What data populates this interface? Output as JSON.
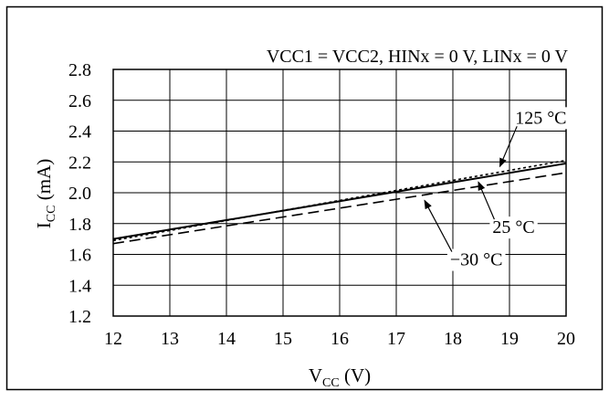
{
  "chart_data": {
    "type": "line",
    "title": "VCC1 = VCC2, HINx = 0 V, LINx = 0 V",
    "xlabel": {
      "main": "V",
      "sub": "CC",
      "unit": " (V)"
    },
    "ylabel": {
      "main": "I",
      "sub": "CC",
      "unit": " (mA)"
    },
    "xlim": [
      12,
      20
    ],
    "ylim": [
      1.2,
      2.8
    ],
    "x_ticks": [
      "12",
      "13",
      "14",
      "15",
      "16",
      "17",
      "18",
      "19",
      "20"
    ],
    "y_ticks": [
      "1.2",
      "1.4",
      "1.6",
      "1.8",
      "2.0",
      "2.2",
      "2.4",
      "2.6",
      "2.8"
    ],
    "x_tick_values": [
      12,
      13,
      14,
      15,
      16,
      17,
      18,
      19,
      20
    ],
    "y_tick_values": [
      1.2,
      1.4,
      1.6,
      1.8,
      2.0,
      2.2,
      2.4,
      2.6,
      2.8
    ],
    "grid": true,
    "series": [
      {
        "name": "125 °C",
        "style": "dotted",
        "x": [
          12,
          20
        ],
        "y": [
          1.69,
          2.21
        ]
      },
      {
        "name": "25 °C",
        "style": "solid",
        "x": [
          12,
          20
        ],
        "y": [
          1.7,
          2.19
        ]
      },
      {
        "name": "−30 °C",
        "style": "dashed",
        "x": [
          12,
          20
        ],
        "y": [
          1.67,
          2.13
        ]
      }
    ],
    "annotations": [
      {
        "text": "125 °C",
        "series": "125 °C",
        "x": 19.1,
        "y": 2.49,
        "arrow_to": [
          18.83,
          2.17
        ],
        "anchor": "start"
      },
      {
        "text": "25 °C",
        "series": "25 °C",
        "x": 18.7,
        "y": 1.78,
        "arrow_to": [
          18.45,
          2.07
        ],
        "anchor": "start"
      },
      {
        "text": "−30 °C",
        "series": "−30 °C",
        "x": 17.95,
        "y": 1.57,
        "arrow_to": [
          17.5,
          1.95
        ],
        "anchor": "start"
      }
    ]
  }
}
